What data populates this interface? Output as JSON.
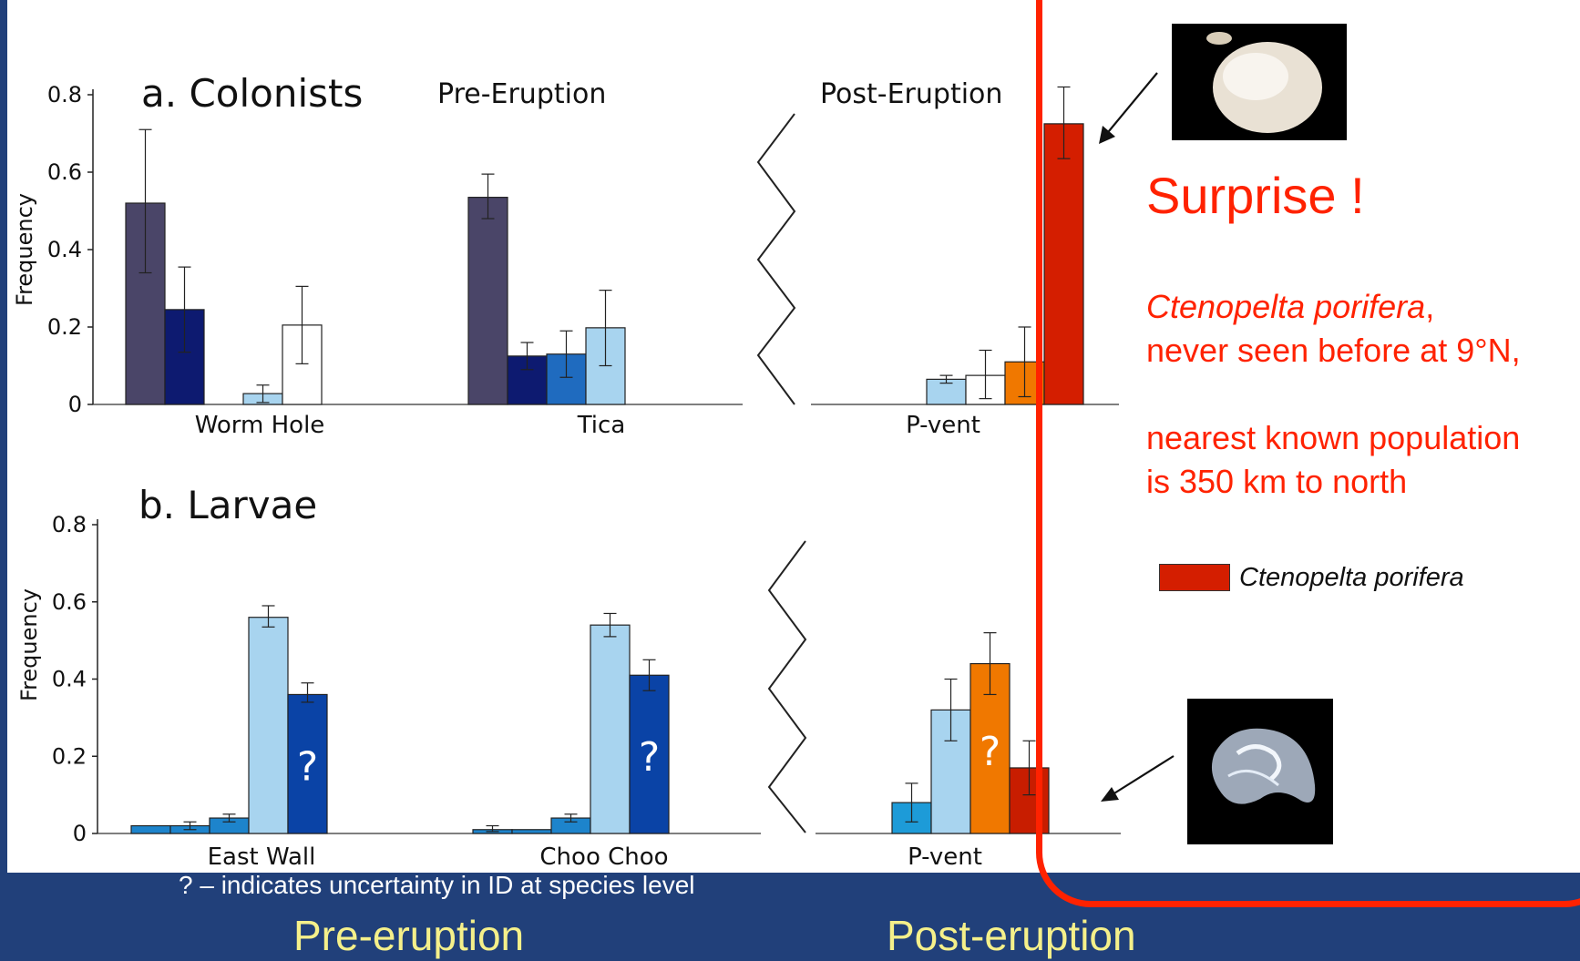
{
  "chart_data": [
    {
      "type": "bar",
      "title": "a. Colonists",
      "ylabel": "Frequency",
      "ylim": [
        0,
        0.8
      ],
      "yticks": [
        "0",
        "0.2",
        "0.4",
        "0.6",
        "0.8"
      ],
      "period_labels": [
        "Pre-Eruption",
        "Post-Eruption"
      ],
      "groups": [
        {
          "label": "Worm Hole",
          "bars": [
            {
              "value": 0.52,
              "err": [
                0.34,
                0.71
              ],
              "color": "#4a4568"
            },
            {
              "value": 0.245,
              "err": [
                0.135,
                0.355
              ],
              "color": "#0d1a70"
            },
            {
              "value": 0.0,
              "err": null,
              "color": "#1f6bbf"
            },
            {
              "value": 0.028,
              "err": [
                0.005,
                0.05
              ],
              "color": "#a8d4ef"
            },
            {
              "value": 0.205,
              "err": [
                0.105,
                0.305
              ],
              "color": "#ffffff"
            }
          ]
        },
        {
          "label": "Tica",
          "bars": [
            {
              "value": 0.535,
              "err": [
                0.48,
                0.595
              ],
              "color": "#4a4568"
            },
            {
              "value": 0.125,
              "err": [
                0.09,
                0.16
              ],
              "color": "#0d1a70"
            },
            {
              "value": 0.13,
              "err": [
                0.07,
                0.19
              ],
              "color": "#1f6bbf"
            },
            {
              "value": 0.198,
              "err": [
                0.1,
                0.295
              ],
              "color": "#a8d4ef"
            }
          ]
        },
        {
          "label": "P-vent",
          "bars": [
            {
              "value": 0.065,
              "err": [
                0.055,
                0.075
              ],
              "color": "#a8d4ef"
            },
            {
              "value": 0.075,
              "err": [
                0.015,
                0.14
              ],
              "color": "#ffffff"
            },
            {
              "value": 0.11,
              "err": [
                0.02,
                0.2
              ],
              "color": "#f07800"
            },
            {
              "value": 0.725,
              "err": [
                0.635,
                0.82
              ],
              "color": "#d41e00"
            }
          ]
        }
      ]
    },
    {
      "type": "bar",
      "title": "b. Larvae",
      "ylabel": "Frequency",
      "ylim": [
        0,
        0.8
      ],
      "yticks": [
        "0",
        "0.2",
        "0.4",
        "0.6",
        "0.8"
      ],
      "groups": [
        {
          "label": "East Wall",
          "bars": [
            {
              "value": 0.02,
              "err": null,
              "color": "#1d84cc"
            },
            {
              "value": 0.02,
              "err": [
                0.01,
                0.03
              ],
              "color": "#1d84cc"
            },
            {
              "value": 0.04,
              "err": [
                0.03,
                0.05
              ],
              "color": "#1d84cc"
            },
            {
              "value": 0.56,
              "err": [
                0.535,
                0.59
              ],
              "color": "#a8d4ef"
            },
            {
              "value": 0.36,
              "err": [
                0.34,
                0.39
              ],
              "color": "#0a43a6",
              "mark": "?"
            }
          ]
        },
        {
          "label": "Choo Choo",
          "bars": [
            {
              "value": 0.01,
              "err": [
                0.005,
                0.02
              ],
              "color": "#1d84cc"
            },
            {
              "value": 0.01,
              "err": null,
              "color": "#1d84cc"
            },
            {
              "value": 0.04,
              "err": [
                0.03,
                0.05
              ],
              "color": "#1d84cc"
            },
            {
              "value": 0.54,
              "err": [
                0.51,
                0.57
              ],
              "color": "#a8d4ef"
            },
            {
              "value": 0.41,
              "err": [
                0.37,
                0.45
              ],
              "color": "#0a43a6",
              "mark": "?"
            }
          ]
        },
        {
          "label": "P-vent",
          "bars": [
            {
              "value": 0.08,
              "err": [
                0.03,
                0.13
              ],
              "color": "#1d9bd8"
            },
            {
              "value": 0.32,
              "err": [
                0.24,
                0.4
              ],
              "color": "#a8d4ef"
            },
            {
              "value": 0.44,
              "err": [
                0.36,
                0.52
              ],
              "color": "#f07800",
              "mark": "?"
            },
            {
              "value": 0.17,
              "err": [
                0.1,
                0.24
              ],
              "color": "#c81d00"
            }
          ]
        }
      ]
    }
  ],
  "callout": {
    "heading": "Surprise !",
    "species": "Ctenopelta porifera",
    "line1_rest": ",",
    "line2": "never seen before at 9°N,",
    "line3": "nearest known population",
    "line4": "is 350 km to north",
    "legend_label": "Ctenopelta porifera",
    "legend_color": "#d41e00",
    "frame_color": "#ff2200"
  },
  "footer": {
    "note": "? – indicates uncertainty in ID at species level",
    "pre": "Pre-eruption",
    "post": "Post-eruption"
  },
  "icons": {
    "top_photo": "limpet-shell-photo",
    "bottom_photo": "larva-shell-photo"
  }
}
